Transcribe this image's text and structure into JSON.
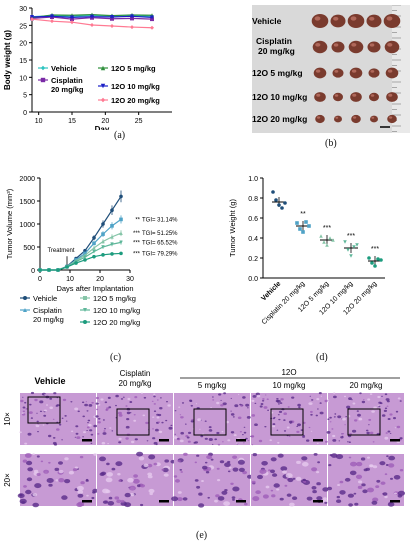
{
  "captions": {
    "a": "(a)",
    "b": "(b)",
    "c": "(c)",
    "d": "(d)",
    "e": "(e)"
  },
  "colors": {
    "vehicle": "#1f4e79",
    "cisplatin": "#4fa3c7",
    "g5": "#86c5a8",
    "g10": "#5fb79a",
    "g20": "#1d9c7e",
    "a_vehicle": "#2fc4c0",
    "a_cis": "#7a2aa6",
    "a_g5": "#2f8f3c",
    "a_g10": "#1b1fc7",
    "a_g20": "#ff7a93"
  },
  "panel_a": {
    "chart_data": {
      "type": "line",
      "xlabel": "Day",
      "ylabel": "Body weight (g)",
      "xlim": [
        9,
        30
      ],
      "ylim": [
        0,
        30
      ],
      "xticks": [
        10,
        15,
        20,
        25
      ],
      "yticks": [
        0,
        5,
        10,
        15,
        20,
        25,
        30
      ],
      "series": [
        {
          "name": "Vehicle",
          "x": [
            9,
            12,
            15,
            18,
            21,
            24,
            27
          ],
          "values": [
            27.5,
            27.8,
            27.6,
            27.9,
            27.7,
            27.8,
            27.6
          ]
        },
        {
          "name": "Cisplatin 20 mg/kg",
          "x": [
            9,
            12,
            15,
            18,
            21,
            24,
            27
          ],
          "values": [
            27.0,
            27.4,
            26.8,
            27.2,
            26.9,
            27.0,
            26.8
          ]
        },
        {
          "name": "12O 5 mg/kg",
          "x": [
            9,
            12,
            15,
            18,
            21,
            24,
            27
          ],
          "values": [
            27.2,
            28.0,
            27.9,
            28.1,
            27.8,
            28.0,
            27.9
          ]
        },
        {
          "name": "12O 10 mg/kg",
          "x": [
            9,
            12,
            15,
            18,
            21,
            24,
            27
          ],
          "values": [
            27.4,
            27.6,
            27.3,
            27.5,
            27.4,
            27.6,
            27.3
          ]
        },
        {
          "name": "12O 20 mg/kg",
          "x": [
            9,
            12,
            15,
            18,
            21,
            24,
            27
          ],
          "values": [
            26.8,
            26.2,
            25.9,
            25.1,
            24.8,
            24.5,
            24.3
          ]
        }
      ]
    },
    "legend": [
      {
        "label": "Vehicle",
        "key": "a_vehicle",
        "marker": "diamond"
      },
      {
        "label": "12O 5 mg/kg",
        "key": "a_g5",
        "marker": "triangle"
      },
      {
        "label": "Cisplatin",
        "label2": "20 mg/kg",
        "key": "a_cis",
        "marker": "square"
      },
      {
        "label": "12O 10 mg/kg",
        "key": "a_g10",
        "marker": "tri-down"
      },
      {
        "label": "12O 20 mg/kg",
        "key": "a_g20",
        "marker": "diamond"
      }
    ]
  },
  "panel_b": {
    "labels": [
      "Vehicle",
      "Cisplatin",
      "20 mg/kg",
      "12O 5 mg/kg",
      "12O 10 mg/kg",
      "12O 20 mg/kg"
    ]
  },
  "panel_c": {
    "chart_data": {
      "type": "line",
      "xlabel": "Days after Implantation",
      "ylabel": "Tumor Volume (mm³)",
      "xlim": [
        0,
        30
      ],
      "ylim": [
        0,
        2000
      ],
      "xticks": [
        0,
        10,
        20,
        30
      ],
      "yticks": [
        0,
        500,
        1000,
        1500,
        2000
      ],
      "annotation": "Treatment",
      "series": [
        {
          "name": "Vehicle",
          "x": [
            0,
            3,
            6,
            9,
            12,
            15,
            18,
            21,
            24,
            27
          ],
          "values": [
            0,
            0,
            0,
            80,
            250,
            420,
            700,
            1000,
            1300,
            1600
          ]
        },
        {
          "name": "Cisplatin 20 mg/kg",
          "x": [
            0,
            3,
            6,
            9,
            12,
            15,
            18,
            21,
            24,
            27
          ],
          "values": [
            0,
            0,
            0,
            75,
            220,
            360,
            580,
            780,
            960,
            1100
          ]
        },
        {
          "name": "12O 5 mg/kg",
          "x": [
            0,
            3,
            6,
            9,
            12,
            15,
            18,
            21,
            24,
            27
          ],
          "values": [
            0,
            0,
            0,
            70,
            200,
            320,
            480,
            620,
            720,
            800
          ]
        },
        {
          "name": "12O 10 mg/kg",
          "x": [
            0,
            3,
            6,
            9,
            12,
            15,
            18,
            21,
            24,
            27
          ],
          "values": [
            0,
            0,
            0,
            70,
            180,
            280,
            400,
            500,
            560,
            600
          ]
        },
        {
          "name": "12O 20 mg/kg",
          "x": [
            0,
            3,
            6,
            9,
            12,
            15,
            18,
            21,
            24,
            27
          ],
          "values": [
            0,
            0,
            0,
            65,
            150,
            220,
            290,
            330,
            350,
            360
          ]
        }
      ],
      "tgi": [
        {
          "stars": "**",
          "text": "TGI= 31.14%"
        },
        {
          "stars": "***",
          "text": "TGI= 51.25%"
        },
        {
          "stars": "***",
          "text": "TGI= 65.52%"
        },
        {
          "stars": "***",
          "text": "TGI= 79.29%"
        }
      ]
    },
    "legend": [
      {
        "label": "Vehicle",
        "key": "vehicle"
      },
      {
        "label": "12O  5 mg/kg",
        "key": "g5"
      },
      {
        "label": "Cisplatin",
        "label2": "20 mg/kg",
        "key": "cisplatin"
      },
      {
        "label": "12O 10 mg/kg",
        "key": "g10"
      },
      {
        "label": "12O 20 mg/kg",
        "key": "g20"
      }
    ]
  },
  "panel_d": {
    "chart_data": {
      "type": "scatter",
      "ylabel": "Tumor Weight (g)",
      "ylim": [
        0,
        1.0
      ],
      "yticks": [
        0,
        0.2,
        0.4,
        0.6,
        0.8,
        1.0
      ],
      "categories": [
        "Vehicle",
        "Cisplatin 20 mg/kg",
        "12O 5 mg/kg",
        "12O 10 mg/kg",
        "12O 20 mg/kg"
      ],
      "means": [
        0.76,
        0.52,
        0.38,
        0.3,
        0.17
      ],
      "points": [
        [
          0.86,
          0.78,
          0.73,
          0.7,
          0.75
        ],
        [
          0.55,
          0.49,
          0.46,
          0.56,
          0.52
        ],
        [
          0.42,
          0.36,
          0.33,
          0.4,
          0.38
        ],
        [
          0.36,
          0.28,
          0.22,
          0.31,
          0.33
        ],
        [
          0.2,
          0.15,
          0.12,
          0.19,
          0.18
        ]
      ],
      "sig": [
        "",
        "**",
        "***",
        "***",
        "***"
      ]
    }
  },
  "panel_e": {
    "col_headers": [
      "Vehicle",
      "Cisplatin",
      "20 mg/kg",
      "12O",
      "5 mg/kg",
      "10 mg/kg",
      "20 mg/kg"
    ],
    "row_labels": [
      "10×",
      "20×"
    ]
  }
}
